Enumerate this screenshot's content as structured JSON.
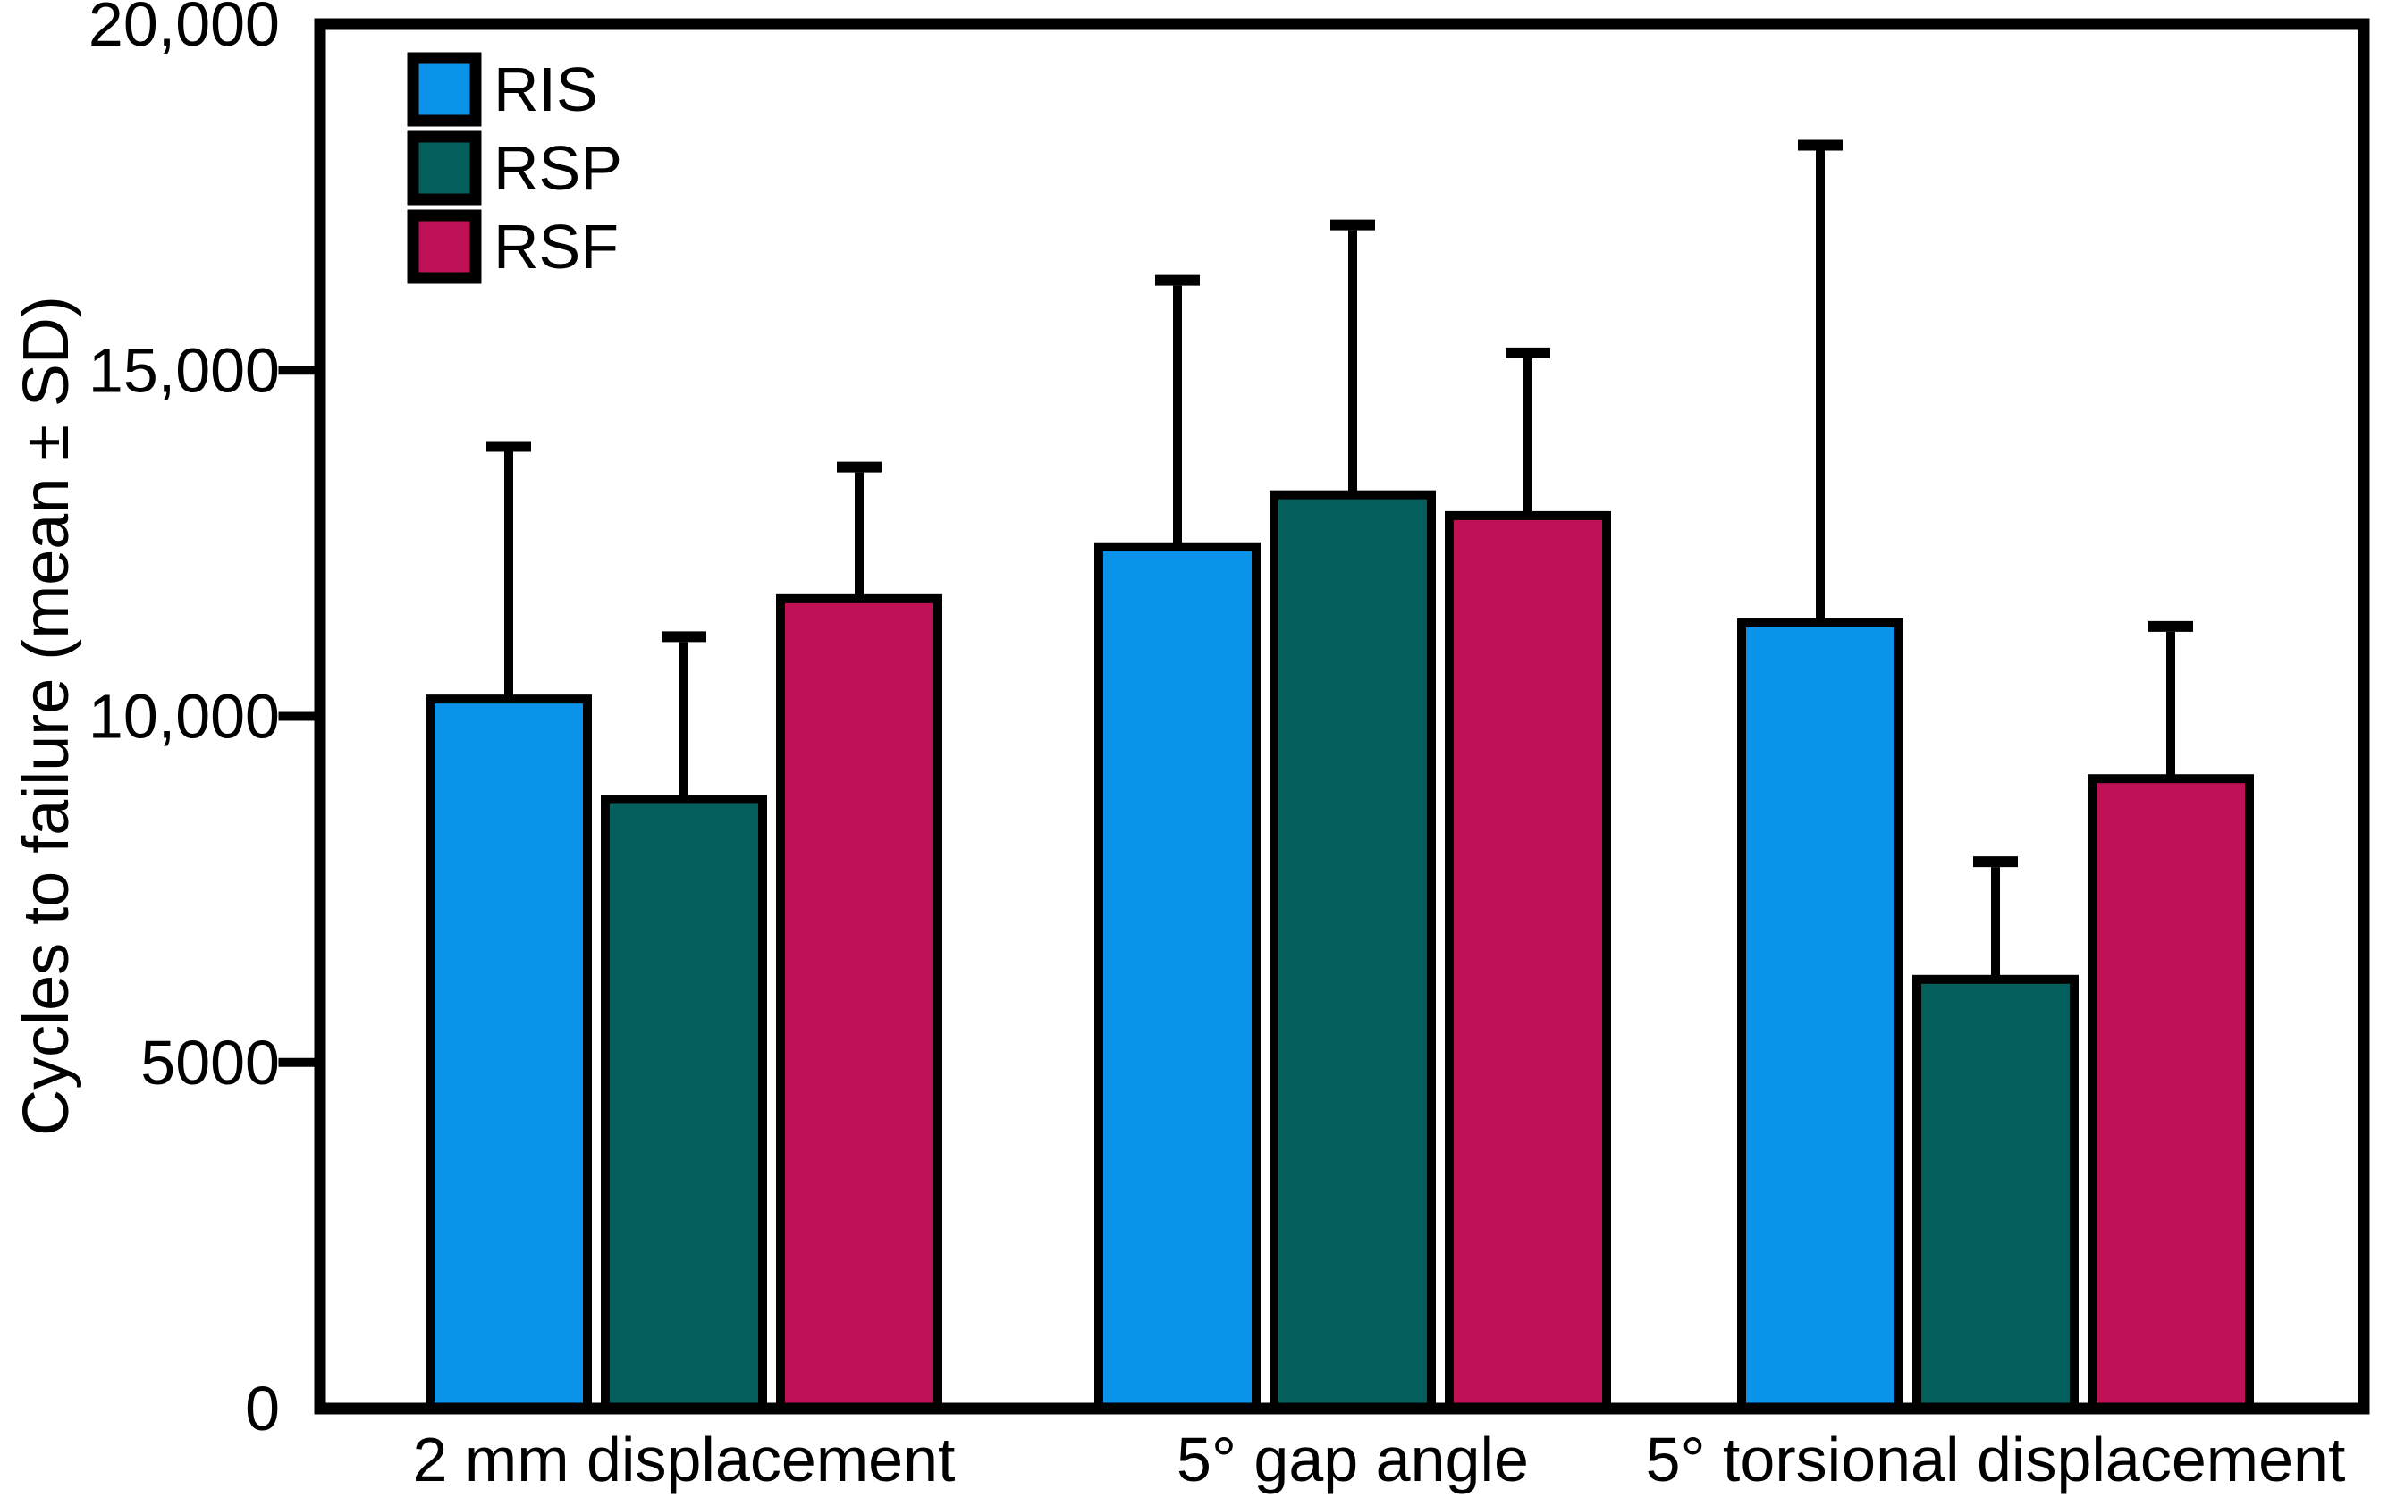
{
  "chart_data": {
    "type": "bar",
    "title": "",
    "xlabel": "",
    "ylabel": "Cycles to failure (mean ± SD)",
    "ylim": [
      0,
      20000
    ],
    "grid": false,
    "background": "#FFFFFF",
    "frame_color": "#000000",
    "error_bars": "upper only, mean + 1 SD, black caps",
    "legend": {
      "position": "top-left-inside",
      "entries": [
        "RIS",
        "RSP",
        "RSF"
      ]
    },
    "yticks": [
      {
        "value": 0,
        "label": "0",
        "has_mark": false
      },
      {
        "value": 5000,
        "label": "5000",
        "has_mark": true
      },
      {
        "value": 10000,
        "label": "10,000",
        "has_mark": true
      },
      {
        "value": 15000,
        "label": "15,000",
        "has_mark": true
      },
      {
        "value": 20000,
        "label": "20,000",
        "has_mark": false
      }
    ],
    "categories": [
      "2 mm displacement",
      "5° gap angle",
      "5° torsional displacement"
    ],
    "series": [
      {
        "name": "RIS",
        "color": "#0B92E9",
        "means": [
          10250,
          12450,
          11350
        ],
        "sd_upper": [
          3650,
          3850,
          6900
        ]
      },
      {
        "name": "RSP",
        "color": "#045F5C",
        "means": [
          8800,
          13200,
          6200
        ],
        "sd_upper": [
          2350,
          3900,
          1700
        ]
      },
      {
        "name": "RSF",
        "color": "#BE1156",
        "means": [
          11700,
          12900,
          9100
        ],
        "sd_upper": [
          1900,
          2350,
          2200
        ]
      }
    ]
  }
}
